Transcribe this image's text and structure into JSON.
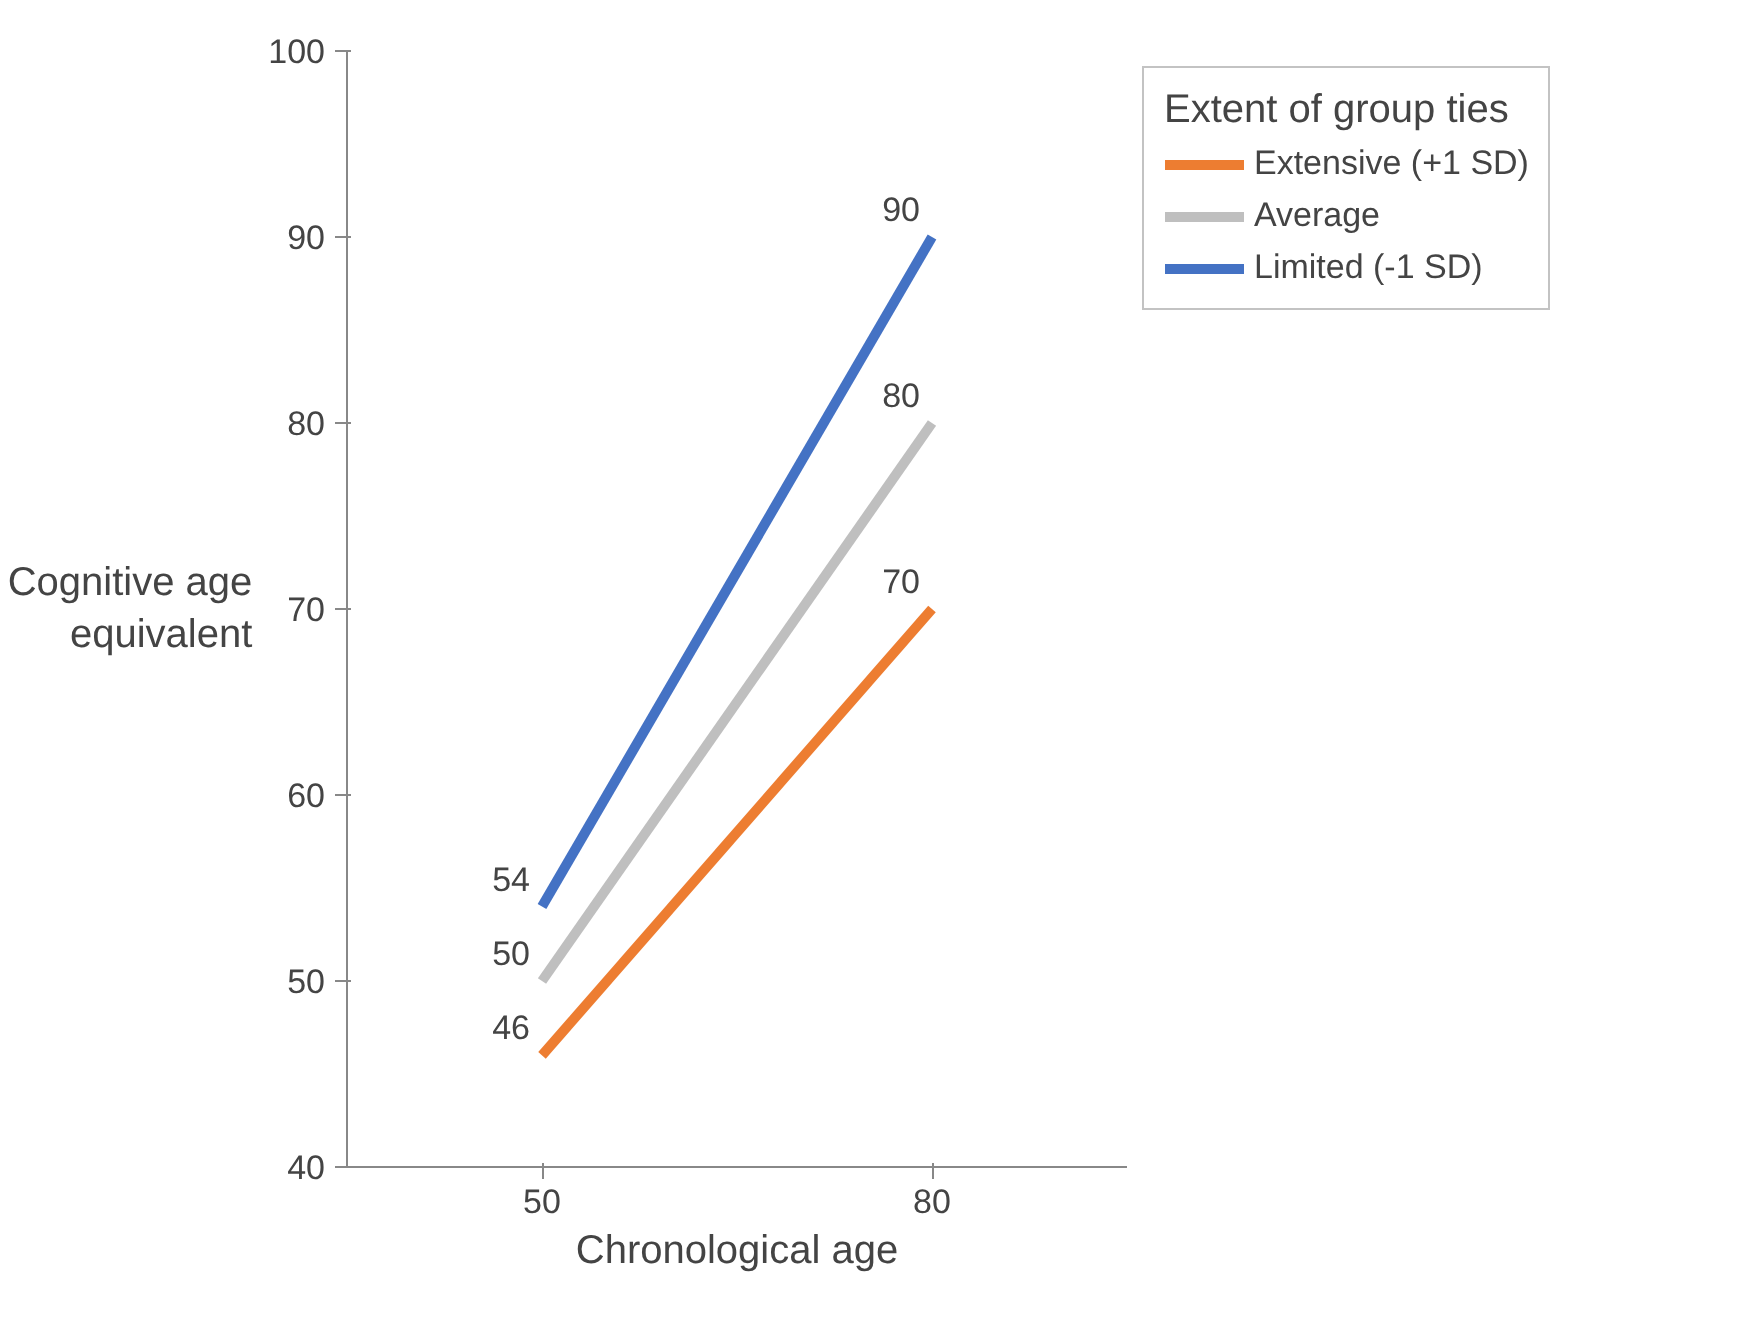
{
  "chart_data": {
    "type": "line",
    "xlabel": "Chronological age",
    "ylabel": "Cognitive age\nequivalent",
    "legend_title": "Extent of group ties",
    "categories": [
      "50",
      "80"
    ],
    "series": [
      {
        "name": "Extensive (+1 SD)",
        "color": "#ed7d31",
        "values": [
          46,
          70
        ]
      },
      {
        "name": "Average",
        "color": "#bfbfbf",
        "values": [
          50,
          80
        ]
      },
      {
        "name": "Limited (-1 SD)",
        "color": "#4472c4",
        "values": [
          54,
          90
        ]
      }
    ],
    "ylim": [
      40,
      100
    ],
    "yticks": [
      40,
      50,
      60,
      70,
      80,
      90,
      100
    ],
    "data_labels": true,
    "grid": false,
    "legend": "top right",
    "marker": "none",
    "line_style": "solid"
  }
}
